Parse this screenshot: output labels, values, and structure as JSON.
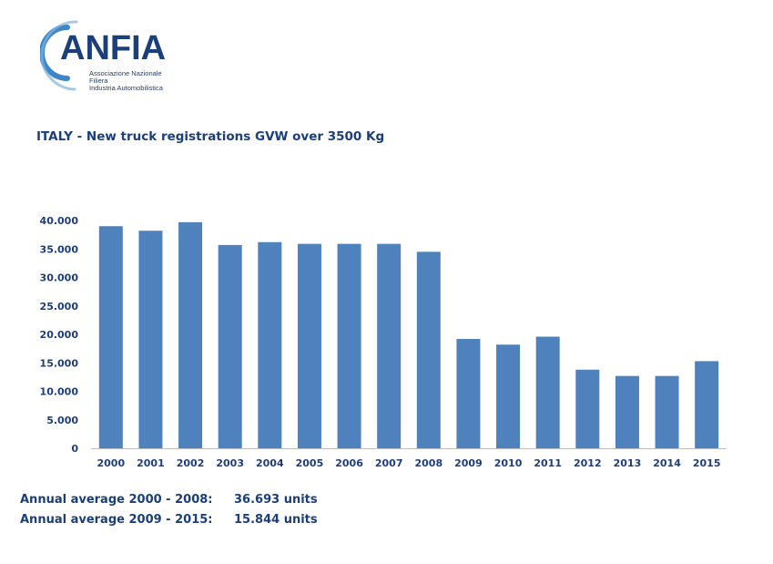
{
  "logo": {
    "name": "ANFIA",
    "subtitle_lines": [
      "Associazione Nazionale",
      "Filiera",
      "Industria Automobilistica"
    ],
    "colors": {
      "arc": "#3f86c9",
      "text": "#1b3f7a"
    }
  },
  "chart_data": {
    "type": "bar",
    "title": "ITALY - New truck registrations GVW over 3500 Kg",
    "xlabel": "",
    "ylabel": "",
    "categories": [
      "2000",
      "2001",
      "2002",
      "2003",
      "2004",
      "2005",
      "2006",
      "2007",
      "2008",
      "2009",
      "2010",
      "2011",
      "2012",
      "2013",
      "2014",
      "2015"
    ],
    "values": [
      39000,
      38200,
      39700,
      35700,
      36200,
      35900,
      35900,
      35900,
      34500,
      19200,
      18200,
      19600,
      13800,
      12700,
      12700,
      15300
    ],
    "ylim": [
      0,
      40000
    ],
    "yticks": [
      "0",
      "5.000",
      "10.000",
      "15.000",
      "20.000",
      "25.000",
      "30.000",
      "35.000",
      "40.000"
    ],
    "grid": false,
    "legend": "none",
    "bar_color": "#4f81bd"
  },
  "averages": [
    {
      "label": "Annual average 2000 - 2008:",
      "value": "36.693 units"
    },
    {
      "label": "Annual average 2009 - 2015:",
      "value": "15.844 units"
    }
  ]
}
